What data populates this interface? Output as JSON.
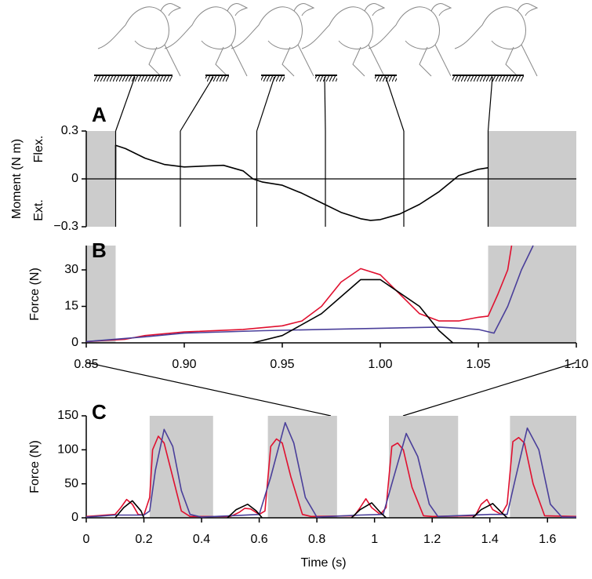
{
  "chart_data": [
    {
      "type": "line",
      "title": "A",
      "ylabel": "Moment (N m)",
      "annotations": [
        "Flex.",
        "Ext."
      ],
      "xlim": [
        0.85,
        1.1
      ],
      "ylim": [
        -0.3,
        0.3
      ],
      "yticks": [
        0.3,
        0,
        {
          "value": -0.3,
          "label": "−0.3"
        }
      ],
      "shaded": [
        [
          0.85,
          0.865
        ],
        [
          1.055,
          1.1
        ]
      ],
      "events": [
        0.865,
        0.898,
        0.937,
        0.972,
        1.012,
        1.055
      ],
      "zero_line": true,
      "series": [
        {
          "color": "#000000",
          "x": [
            0.865,
            0.865,
            0.87,
            0.88,
            0.89,
            0.9,
            0.91,
            0.92,
            0.93,
            0.935,
            0.94,
            0.95,
            0.96,
            0.97,
            0.98,
            0.99,
            0.995,
            1.0,
            1.01,
            1.02,
            1.03,
            1.04,
            1.05,
            1.055
          ],
          "values": [
            0,
            0.21,
            0.19,
            0.13,
            0.09,
            0.075,
            0.08,
            0.085,
            0.05,
            0.0,
            -0.02,
            -0.04,
            -0.09,
            -0.15,
            -0.21,
            -0.25,
            -0.26,
            -0.255,
            -0.22,
            -0.16,
            -0.08,
            0.02,
            0.06,
            0.07
          ]
        }
      ]
    },
    {
      "type": "line",
      "title": "B",
      "ylabel": "Force (N)",
      "xlim": [
        0.85,
        1.1
      ],
      "ylim": [
        0,
        40
      ],
      "xticks": [
        0.85,
        {
          "value": 0.9,
          "label": "0.90"
        },
        0.95,
        {
          "value": 1.0,
          "label": "1.00"
        },
        1.05,
        {
          "value": 1.1,
          "label": "1.10"
        }
      ],
      "yticks": [
        0,
        15,
        30
      ],
      "shaded": [
        [
          0.85,
          0.865
        ],
        [
          1.055,
          1.1
        ]
      ],
      "series": [
        {
          "color": "#e0102f",
          "x": [
            0.85,
            0.87,
            0.88,
            0.9,
            0.93,
            0.95,
            0.96,
            0.97,
            0.98,
            0.99,
            1.0,
            1.01,
            1.02,
            1.03,
            1.04,
            1.05,
            1.055,
            1.06,
            1.065,
            1.067
          ],
          "values": [
            0.5,
            1.5,
            3,
            4.5,
            5.5,
            7,
            9,
            15,
            25,
            30.5,
            28,
            20,
            12,
            9,
            9,
            10.5,
            11,
            20,
            30,
            40
          ]
        },
        {
          "color": "#4a3f9a",
          "x": [
            0.85,
            0.88,
            0.9,
            0.94,
            0.97,
            1.0,
            1.03,
            1.05,
            1.058,
            1.065,
            1.072,
            1.078
          ],
          "values": [
            0.5,
            2.5,
            4,
            5,
            5.5,
            6,
            6.5,
            5.5,
            4,
            15,
            30,
            40
          ]
        },
        {
          "color": "#000000",
          "x": [
            0.935,
            0.95,
            0.97,
            0.99,
            1.0,
            1.02,
            1.03,
            1.037
          ],
          "values": [
            0,
            3,
            12,
            26,
            26,
            15,
            5,
            0
          ]
        }
      ]
    },
    {
      "type": "line",
      "title": "C",
      "ylabel": "Force (N)",
      "xlabel": "Time (s)",
      "xlim": [
        0,
        1.7
      ],
      "ylim": [
        0,
        150
      ],
      "xticks": [
        0,
        0.2,
        0.4,
        0.6,
        0.8,
        1,
        1.2,
        1.4,
        1.6
      ],
      "yticks": [
        0,
        50,
        100,
        150
      ],
      "shaded": [
        [
          0.22,
          0.44
        ],
        [
          0.63,
          0.87
        ],
        [
          1.05,
          1.29
        ],
        [
          1.47,
          1.7
        ]
      ],
      "series": [
        {
          "color": "#e0102f",
          "x": [
            0,
            0.1,
            0.12,
            0.14,
            0.16,
            0.18,
            0.2,
            0.22,
            0.23,
            0.25,
            0.27,
            0.3,
            0.33,
            0.36,
            0.5,
            0.53,
            0.55,
            0.57,
            0.6,
            0.62,
            0.64,
            0.66,
            0.68,
            0.71,
            0.75,
            0.78,
            0.93,
            0.95,
            0.97,
            0.99,
            1.02,
            1.04,
            1.06,
            1.08,
            1.1,
            1.13,
            1.17,
            1.2,
            1.35,
            1.37,
            1.39,
            1.41,
            1.44,
            1.46,
            1.48,
            1.5,
            1.52,
            1.55,
            1.59,
            1.7
          ],
          "values": [
            2,
            5,
            15,
            27,
            20,
            5,
            4,
            30,
            100,
            120,
            110,
            60,
            10,
            2,
            2,
            8,
            14,
            13,
            5,
            10,
            105,
            116,
            110,
            60,
            5,
            2,
            3,
            15,
            28,
            15,
            5,
            15,
            105,
            110,
            100,
            45,
            3,
            2,
            3,
            20,
            27,
            12,
            5,
            20,
            112,
            118,
            110,
            50,
            3,
            2
          ]
        },
        {
          "color": "#4a3f9a",
          "x": [
            0,
            0.1,
            0.2,
            0.22,
            0.24,
            0.27,
            0.3,
            0.33,
            0.36,
            0.4,
            0.5,
            0.6,
            0.64,
            0.69,
            0.72,
            0.76,
            0.8,
            0.95,
            1.03,
            1.06,
            1.11,
            1.15,
            1.19,
            1.22,
            1.4,
            1.46,
            1.49,
            1.53,
            1.57,
            1.61,
            1.65,
            1.7
          ],
          "values": [
            1,
            4,
            4,
            10,
            70,
            130,
            105,
            40,
            5,
            1,
            3,
            5,
            60,
            140,
            110,
            30,
            1,
            4,
            5,
            50,
            124,
            90,
            20,
            2,
            5,
            5,
            60,
            132,
            100,
            20,
            1,
            1
          ]
        },
        {
          "color": "#000000",
          "x": [
            0.1,
            0.13,
            0.16,
            0.19,
            0.2,
            null,
            0.49,
            0.52,
            0.56,
            0.59,
            0.61,
            null,
            0.92,
            0.95,
            0.99,
            1.02,
            1.04,
            null,
            1.34,
            1.37,
            1.41,
            1.44,
            1.46
          ],
          "values": [
            0,
            15,
            25,
            10,
            0,
            null,
            0,
            12,
            20,
            10,
            0,
            null,
            0,
            12,
            22,
            8,
            0,
            null,
            0,
            12,
            21,
            8,
            0
          ]
        }
      ]
    }
  ]
}
